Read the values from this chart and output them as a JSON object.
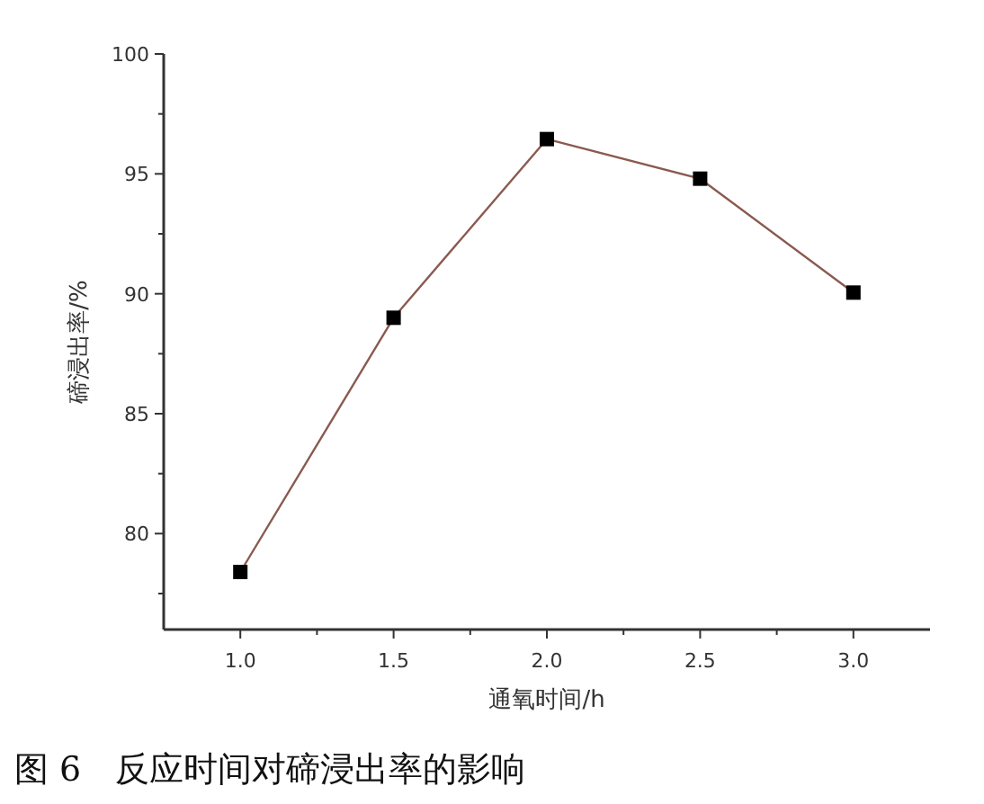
{
  "chart_data": {
    "type": "line",
    "xlabel": "通氧时间/h",
    "ylabel": "碲浸出率/%",
    "annotations": [
      "图 6　反应时间对碲浸出率的影响"
    ],
    "x": [
      1.0,
      1.5,
      2.0,
      2.5,
      3.0
    ],
    "series": [
      {
        "color": "#8a5a50",
        "values": [
          78.4,
          89.0,
          96.45,
          94.8,
          90.05
        ]
      }
    ],
    "marker": "square",
    "line_style": "solid",
    "xlim": [
      0.75,
      3.25
    ],
    "xticks": [
      {
        "value": 1.0,
        "label": "1.0"
      },
      {
        "value": 1.25,
        "label": null
      },
      {
        "value": 1.5,
        "label": "1.5"
      },
      {
        "value": 1.75,
        "label": null
      },
      {
        "value": 2.0,
        "label": "2.0"
      },
      {
        "value": 2.25,
        "label": null
      },
      {
        "value": 2.5,
        "label": "2.5"
      },
      {
        "value": 2.75,
        "label": null
      },
      {
        "value": 3.0,
        "label": "3.0"
      }
    ],
    "ylim": [
      76,
      100
    ],
    "yticks": [
      {
        "value": 77.5,
        "label": null
      },
      80,
      {
        "value": 82.5,
        "label": null
      },
      85,
      {
        "value": 87.5,
        "label": null
      },
      90,
      {
        "value": 92.5,
        "label": null
      },
      95,
      {
        "value": 97.5,
        "label": null
      },
      100
    ]
  }
}
